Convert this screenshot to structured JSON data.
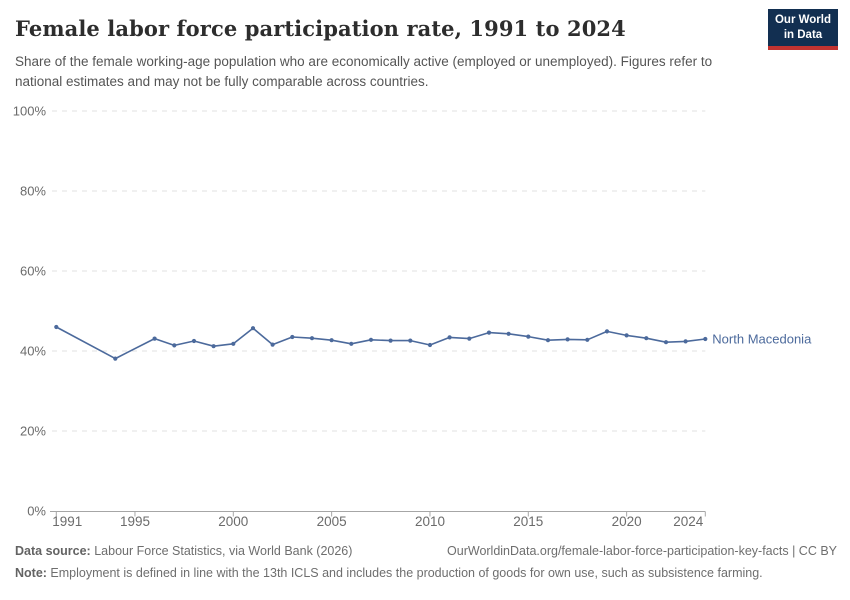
{
  "header": {
    "title": "Female labor force participation rate, 1991 to 2024",
    "subtitle": "Share of the female working-age population who are economically active (employed or unemployed). Figures refer to national estimates and may not be fully comparable across countries.",
    "logo": {
      "line1": "Our World",
      "line2": "in Data",
      "bg_color": "#122f51",
      "accent_color": "#c23330"
    }
  },
  "chart_data": {
    "type": "line",
    "title": "Female labor force participation rate, 1991 to 2024",
    "xlabel": "",
    "ylabel": "",
    "xlim": [
      1991,
      2024
    ],
    "ylim": [
      0,
      100
    ],
    "x_ticks": [
      1991,
      1995,
      2000,
      2005,
      2010,
      2015,
      2020,
      2024
    ],
    "y_ticks": [
      0,
      20,
      40,
      60,
      80,
      100
    ],
    "y_tick_suffix": "%",
    "grid": "horizontal-dashed",
    "legend_position": "end-of-line-label",
    "series": [
      {
        "name": "North Macedonia",
        "color": "#4c6a9c",
        "points": [
          [
            1991,
            46.0
          ],
          [
            1994,
            38.1
          ],
          [
            1996,
            43.1
          ],
          [
            1997,
            41.4
          ],
          [
            1998,
            42.5
          ],
          [
            1999,
            41.2
          ],
          [
            2000,
            41.8
          ],
          [
            2001,
            45.7
          ],
          [
            2002,
            41.6
          ],
          [
            2003,
            43.5
          ],
          [
            2004,
            43.2
          ],
          [
            2005,
            42.7
          ],
          [
            2006,
            41.8
          ],
          [
            2007,
            42.8
          ],
          [
            2008,
            42.6
          ],
          [
            2009,
            42.6
          ],
          [
            2010,
            41.5
          ],
          [
            2011,
            43.4
          ],
          [
            2012,
            43.1
          ],
          [
            2013,
            44.6
          ],
          [
            2014,
            44.3
          ],
          [
            2015,
            43.6
          ],
          [
            2016,
            42.7
          ],
          [
            2017,
            42.9
          ],
          [
            2018,
            42.8
          ],
          [
            2019,
            44.9
          ],
          [
            2020,
            43.9
          ],
          [
            2021,
            43.2
          ],
          [
            2022,
            42.2
          ],
          [
            2023,
            42.4
          ],
          [
            2024,
            43.0
          ]
        ]
      }
    ]
  },
  "footer": {
    "datasource_label": "Data source:",
    "datasource_text": " Labour Force Statistics, via World Bank (2026)",
    "link_text": "OurWorldinData.org/female-labor-force-participation-key-facts | CC BY",
    "note_label": "Note:",
    "note_text": " Employment is defined in line with the 13th ICLS and includes the production of goods for own use, such as subsistence farming."
  }
}
